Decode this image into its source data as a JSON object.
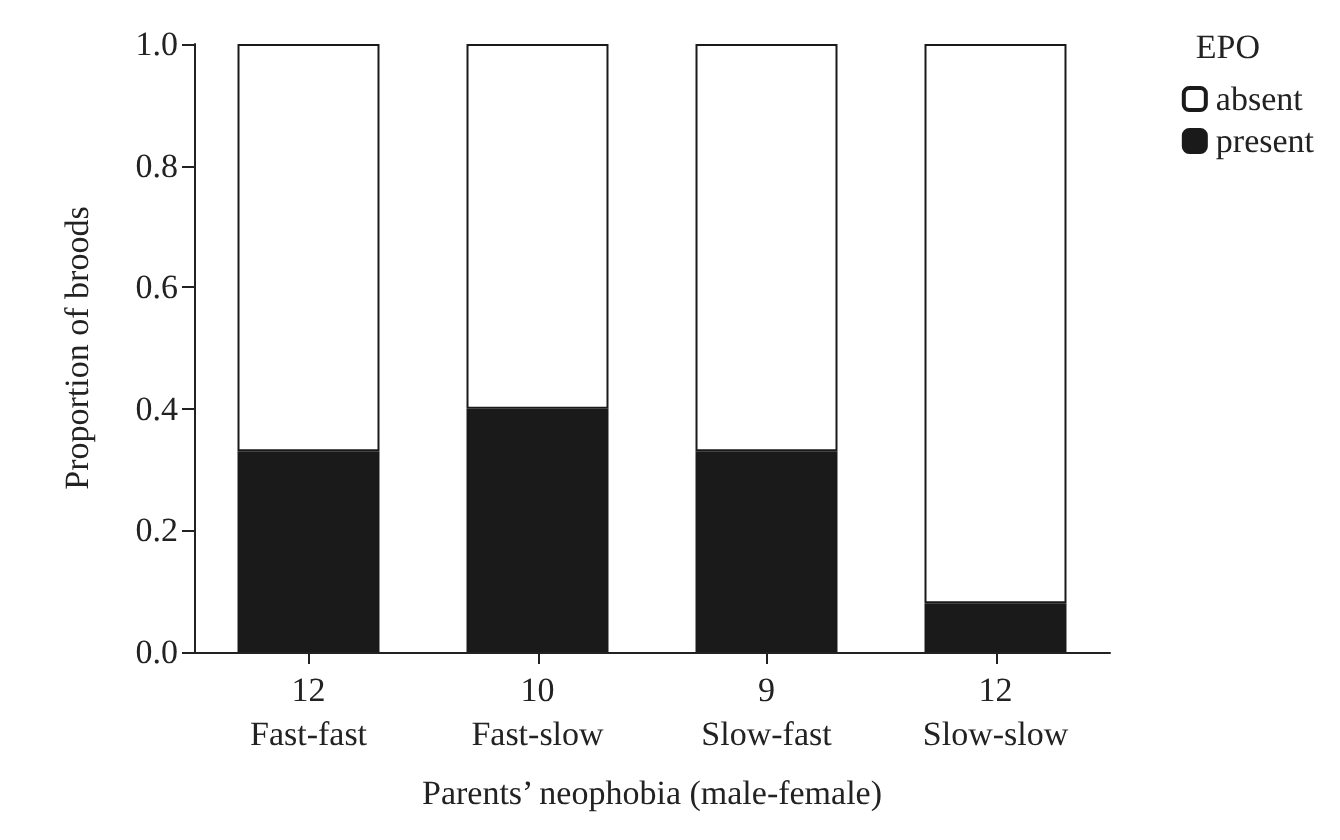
{
  "chart_data": {
    "type": "bar",
    "stacked": true,
    "xlabel": "Parents’ neophobia (male-female)",
    "ylabel": "Proportion of broods",
    "legend_title": "EPO",
    "legend": "top right",
    "categories": [
      "12\nFast-fast",
      "10\nFast-slow",
      "9\nSlow-fast",
      "12\nSlow-slow"
    ],
    "series": [
      {
        "name": "present",
        "color": "#1a1a1a",
        "values": [
          0.33,
          0.4,
          0.33,
          0.08
        ]
      },
      {
        "name": "absent",
        "color": "#ffffff",
        "values": [
          0.67,
          0.6,
          0.67,
          0.92
        ]
      }
    ],
    "ylim": [
      0,
      1
    ],
    "yticks": [
      {
        "value": 0,
        "label": "0.0"
      },
      {
        "value": 0.2,
        "label": "0.2"
      },
      {
        "value": 0.4,
        "label": "0.4"
      },
      {
        "value": 0.6,
        "label": "0.6"
      },
      {
        "value": 0.8,
        "label": "0.8"
      },
      {
        "value": 1,
        "label": "1.0"
      }
    ],
    "grid": false
  }
}
